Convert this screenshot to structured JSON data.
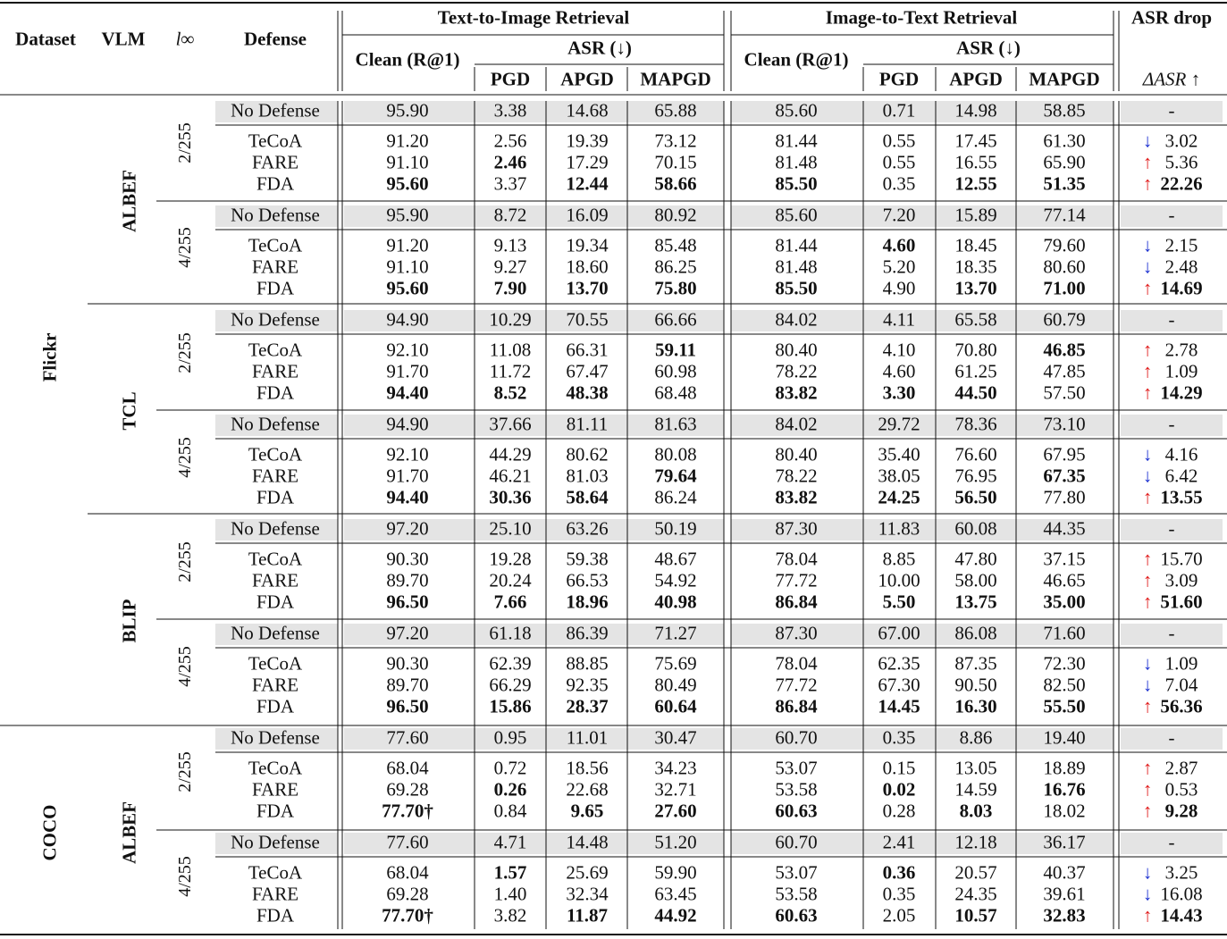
{
  "header": {
    "dataset": "Dataset",
    "vlm": "VLM",
    "linf": "l∞",
    "defense": "Defense",
    "t2i": "Text-to-Image Retrieval",
    "i2t": "Image-to-Text Retrieval",
    "asr_drop": "ASR drop",
    "clean": "Clean (R@1)",
    "asr": "ASR (↓)",
    "pgd": "PGD",
    "apgd": "APGD",
    "mapgd": "MAPGD",
    "delta": "ΔASR ↑"
  },
  "datasets": [
    "Flickr",
    "COCO"
  ],
  "vlms": [
    "ALBEF",
    "TCL",
    "BLIP",
    "ALBEF"
  ],
  "epsilons": [
    "2/255",
    "4/255",
    "2/255",
    "4/255",
    "2/255",
    "4/255",
    "2/255",
    "4/255"
  ],
  "groups": [
    {
      "rows": [
        [
          "No Defense",
          "95.90",
          "3.38",
          "14.68",
          "65.88",
          "85.60",
          "0.71",
          "14.98",
          "58.85",
          "-"
        ],
        [
          "TeCoA",
          "91.20",
          "2.56",
          "19.39",
          "73.12",
          "81.44",
          "0.55",
          "17.45",
          "61.30",
          "3.02"
        ],
        [
          "FARE",
          "91.10",
          "2.46",
          "17.29",
          "70.15",
          "81.48",
          "0.55",
          "16.55",
          "65.90",
          "5.36"
        ],
        [
          "FDA",
          "95.60",
          "3.37",
          "12.44",
          "58.66",
          "85.50",
          "0.35",
          "12.55",
          "51.35",
          "22.26"
        ]
      ],
      "bold": [
        [],
        [],
        [
          2
        ],
        [
          1,
          3,
          4,
          5,
          7,
          8,
          9
        ]
      ],
      "arrows": [
        "",
        "down",
        "up",
        "up"
      ]
    },
    {
      "rows": [
        [
          "No Defense",
          "95.90",
          "8.72",
          "16.09",
          "80.92",
          "85.60",
          "7.20",
          "15.89",
          "77.14",
          "-"
        ],
        [
          "TeCoA",
          "91.20",
          "9.13",
          "19.34",
          "85.48",
          "81.44",
          "4.60",
          "18.45",
          "79.60",
          "2.15"
        ],
        [
          "FARE",
          "91.10",
          "9.27",
          "18.60",
          "86.25",
          "81.48",
          "5.20",
          "18.35",
          "80.60",
          "2.48"
        ],
        [
          "FDA",
          "95.60",
          "7.90",
          "13.70",
          "75.80",
          "85.50",
          "4.90",
          "13.70",
          "71.00",
          "14.69"
        ]
      ],
      "bold": [
        [],
        [
          6
        ],
        [],
        [
          1,
          2,
          3,
          4,
          5,
          7,
          8,
          9
        ]
      ],
      "arrows": [
        "",
        "down",
        "down",
        "up"
      ]
    },
    {
      "rows": [
        [
          "No Defense",
          "94.90",
          "10.29",
          "70.55",
          "66.66",
          "84.02",
          "4.11",
          "65.58",
          "60.79",
          "-"
        ],
        [
          "TeCoA",
          "92.10",
          "11.08",
          "66.31",
          "59.11",
          "80.40",
          "4.10",
          "70.80",
          "46.85",
          "2.78"
        ],
        [
          "FARE",
          "91.70",
          "11.72",
          "67.47",
          "60.98",
          "78.22",
          "4.60",
          "61.25",
          "47.85",
          "1.09"
        ],
        [
          "FDA",
          "94.40",
          "8.52",
          "48.38",
          "68.48",
          "83.82",
          "3.30",
          "44.50",
          "57.50",
          "14.29"
        ]
      ],
      "bold": [
        [],
        [
          4,
          8
        ],
        [],
        [
          1,
          2,
          3,
          5,
          6,
          7,
          9
        ]
      ],
      "arrows": [
        "",
        "up",
        "up",
        "up"
      ]
    },
    {
      "rows": [
        [
          "No Defense",
          "94.90",
          "37.66",
          "81.11",
          "81.63",
          "84.02",
          "29.72",
          "78.36",
          "73.10",
          "-"
        ],
        [
          "TeCoA",
          "92.10",
          "44.29",
          "80.62",
          "80.08",
          "80.40",
          "35.40",
          "76.60",
          "67.95",
          "4.16"
        ],
        [
          "FARE",
          "91.70",
          "46.21",
          "81.03",
          "79.64",
          "78.22",
          "38.05",
          "76.95",
          "67.35",
          "6.42"
        ],
        [
          "FDA",
          "94.40",
          "30.36",
          "58.64",
          "86.24",
          "83.82",
          "24.25",
          "56.50",
          "77.80",
          "13.55"
        ]
      ],
      "bold": [
        [],
        [],
        [
          4,
          8
        ],
        [
          1,
          2,
          3,
          5,
          6,
          7,
          9
        ]
      ],
      "arrows": [
        "",
        "down",
        "down",
        "up"
      ]
    },
    {
      "rows": [
        [
          "No Defense",
          "97.20",
          "25.10",
          "63.26",
          "50.19",
          "87.30",
          "11.83",
          "60.08",
          "44.35",
          "-"
        ],
        [
          "TeCoA",
          "90.30",
          "19.28",
          "59.38",
          "48.67",
          "78.04",
          "8.85",
          "47.80",
          "37.15",
          "15.70"
        ],
        [
          "FARE",
          "89.70",
          "20.24",
          "66.53",
          "54.92",
          "77.72",
          "10.00",
          "58.00",
          "46.65",
          "3.09"
        ],
        [
          "FDA",
          "96.50",
          "7.66",
          "18.96",
          "40.98",
          "86.84",
          "5.50",
          "13.75",
          "35.00",
          "51.60"
        ]
      ],
      "bold": [
        [],
        [],
        [],
        [
          1,
          2,
          3,
          4,
          5,
          6,
          7,
          8,
          9
        ]
      ],
      "arrows": [
        "",
        "up",
        "up",
        "up"
      ]
    },
    {
      "rows": [
        [
          "No Defense",
          "97.20",
          "61.18",
          "86.39",
          "71.27",
          "87.30",
          "67.00",
          "86.08",
          "71.60",
          "-"
        ],
        [
          "TeCoA",
          "90.30",
          "62.39",
          "88.85",
          "75.69",
          "78.04",
          "62.35",
          "87.35",
          "72.30",
          "1.09"
        ],
        [
          "FARE",
          "89.70",
          "66.29",
          "92.35",
          "80.49",
          "77.72",
          "67.30",
          "90.50",
          "82.50",
          "7.04"
        ],
        [
          "FDA",
          "96.50",
          "15.86",
          "28.37",
          "60.64",
          "86.84",
          "14.45",
          "16.30",
          "55.50",
          "56.36"
        ]
      ],
      "bold": [
        [],
        [],
        [],
        [
          1,
          2,
          3,
          4,
          5,
          6,
          7,
          8,
          9
        ]
      ],
      "arrows": [
        "",
        "down",
        "down",
        "up"
      ]
    },
    {
      "rows": [
        [
          "No Defense",
          "77.60",
          "0.95",
          "11.01",
          "30.47",
          "60.70",
          "0.35",
          "8.86",
          "19.40",
          "-"
        ],
        [
          "TeCoA",
          "68.04",
          "0.72",
          "18.56",
          "34.23",
          "53.07",
          "0.15",
          "13.05",
          "18.89",
          "2.87"
        ],
        [
          "FARE",
          "69.28",
          "0.26",
          "22.68",
          "32.71",
          "53.58",
          "0.02",
          "14.59",
          "16.76",
          "0.53"
        ],
        [
          "FDA",
          "77.70†",
          "0.84",
          "9.65",
          "27.60",
          "60.63",
          "0.28",
          "8.03",
          "18.02",
          "9.28"
        ]
      ],
      "bold": [
        [],
        [],
        [
          2,
          6,
          8
        ],
        [
          1,
          3,
          4,
          5,
          7,
          9
        ]
      ],
      "arrows": [
        "",
        "up",
        "up",
        "up"
      ]
    },
    {
      "rows": [
        [
          "No Defense",
          "77.60",
          "4.71",
          "14.48",
          "51.20",
          "60.70",
          "2.41",
          "12.18",
          "36.17",
          "-"
        ],
        [
          "TeCoA",
          "68.04",
          "1.57",
          "25.69",
          "59.90",
          "53.07",
          "0.36",
          "20.57",
          "40.37",
          "3.25"
        ],
        [
          "FARE",
          "69.28",
          "1.40",
          "32.34",
          "63.45",
          "53.58",
          "0.35",
          "24.35",
          "39.61",
          "16.08"
        ],
        [
          "FDA",
          "77.70†",
          "3.82",
          "11.87",
          "44.92",
          "60.63",
          "2.05",
          "10.57",
          "32.83",
          "14.43"
        ]
      ],
      "bold": [
        [],
        [
          2,
          6
        ],
        [],
        [
          1,
          3,
          4,
          5,
          7,
          8,
          9
        ]
      ],
      "arrows": [
        "",
        "down",
        "down",
        "up"
      ]
    }
  ],
  "colors": {
    "shade": "#e4e4e4",
    "up": "#e01a1a",
    "down": "#1a2fd0",
    "rule": "#111111"
  }
}
